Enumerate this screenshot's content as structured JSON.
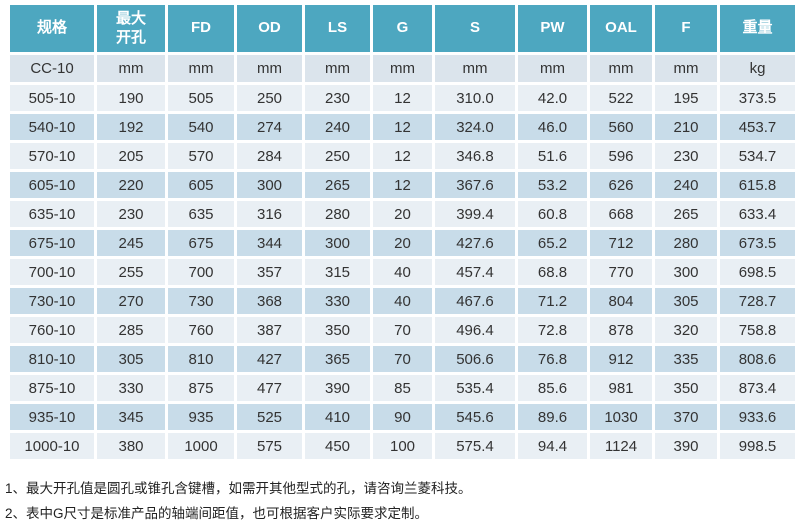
{
  "colors": {
    "header_bg": "#4DA7C0",
    "header_text": "#FFFFFF",
    "unit_row_bg": "#DBE4EC",
    "row_light_bg": "#E9EFF4",
    "row_dark_bg": "#C8DCE9",
    "body_text": "#333333",
    "page_bg": "#FFFFFF"
  },
  "table": {
    "columns": [
      "规格",
      "最大\n开孔",
      "FD",
      "OD",
      "LS",
      "G",
      "S",
      "PW",
      "OAL",
      "F",
      "重量"
    ],
    "units": [
      "CC-10",
      "mm",
      "mm",
      "mm",
      "mm",
      "mm",
      "mm",
      "mm",
      "mm",
      "mm",
      "kg"
    ],
    "rows": [
      [
        "505-10",
        "190",
        "505",
        "250",
        "230",
        "12",
        "310.0",
        "42.0",
        "522",
        "195",
        "373.5"
      ],
      [
        "540-10",
        "192",
        "540",
        "274",
        "240",
        "12",
        "324.0",
        "46.0",
        "560",
        "210",
        "453.7"
      ],
      [
        "570-10",
        "205",
        "570",
        "284",
        "250",
        "12",
        "346.8",
        "51.6",
        "596",
        "230",
        "534.7"
      ],
      [
        "605-10",
        "220",
        "605",
        "300",
        "265",
        "12",
        "367.6",
        "53.2",
        "626",
        "240",
        "615.8"
      ],
      [
        "635-10",
        "230",
        "635",
        "316",
        "280",
        "20",
        "399.4",
        "60.8",
        "668",
        "265",
        "633.4"
      ],
      [
        "675-10",
        "245",
        "675",
        "344",
        "300",
        "20",
        "427.6",
        "65.2",
        "712",
        "280",
        "673.5"
      ],
      [
        "700-10",
        "255",
        "700",
        "357",
        "315",
        "40",
        "457.4",
        "68.8",
        "770",
        "300",
        "698.5"
      ],
      [
        "730-10",
        "270",
        "730",
        "368",
        "330",
        "40",
        "467.6",
        "71.2",
        "804",
        "305",
        "728.7"
      ],
      [
        "760-10",
        "285",
        "760",
        "387",
        "350",
        "70",
        "496.4",
        "72.8",
        "878",
        "320",
        "758.8"
      ],
      [
        "810-10",
        "305",
        "810",
        "427",
        "365",
        "70",
        "506.6",
        "76.8",
        "912",
        "335",
        "808.6"
      ],
      [
        "875-10",
        "330",
        "875",
        "477",
        "390",
        "85",
        "535.4",
        "85.6",
        "981",
        "350",
        "873.4"
      ],
      [
        "935-10",
        "345",
        "935",
        "525",
        "410",
        "90",
        "545.6",
        "89.6",
        "1030",
        "370",
        "933.6"
      ],
      [
        "1000-10",
        "380",
        "1000",
        "575",
        "450",
        "100",
        "575.4",
        "94.4",
        "1124",
        "390",
        "998.5"
      ]
    ]
  },
  "footnotes": [
    "1、最大开孔值是圆孔或锥孔含键槽，如需开其他型式的孔，请咨询兰菱科技。",
    "2、表中G尺寸是标准产品的轴端间距值，也可根据客户实际要求定制。"
  ]
}
